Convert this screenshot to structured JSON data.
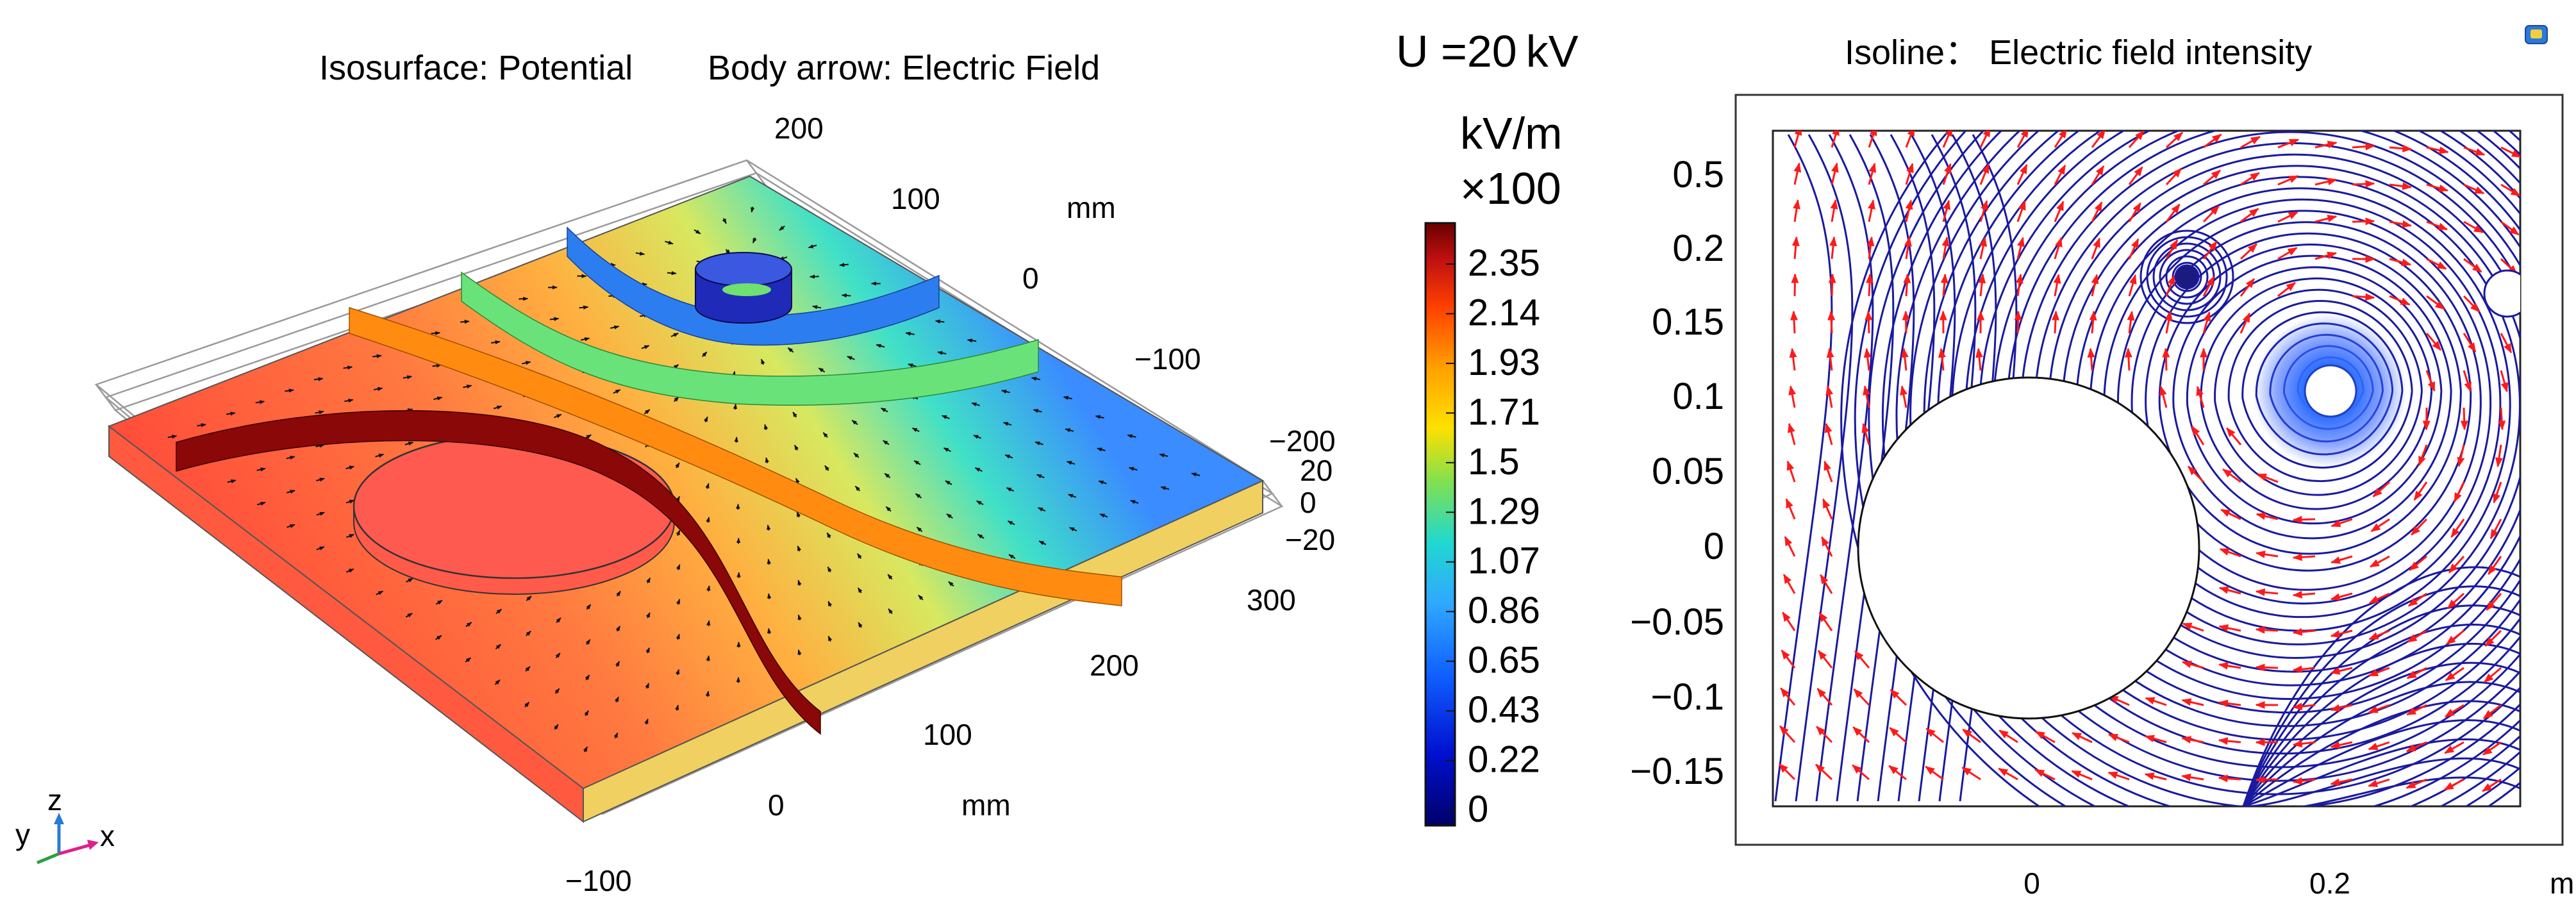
{
  "left_panel": {
    "title_iso": "Isosurface: Potential",
    "title_arrow": "Body arrow: Electric Field",
    "y_ticks": [
      "200",
      "100",
      "0",
      "−100"
    ],
    "z_ticks": [
      "−200",
      "20",
      "0",
      "−20"
    ],
    "x_ticks": [
      "300",
      "200",
      "100",
      "0",
      "−100"
    ],
    "unit_a": "mm",
    "unit_b": "mm",
    "triad": {
      "z": "z",
      "y": "y",
      "x": "x"
    }
  },
  "legend": {
    "voltage": "U =20 kV",
    "unit": "kV/m",
    "scale": "×100",
    "ticks": [
      "2.35",
      "2.14",
      "1.93",
      "1.71",
      "1.5",
      "1.29",
      "1.07",
      "0.86",
      "0.65",
      "0.43",
      "0.22",
      "0"
    ],
    "colors": [
      "#7a0000",
      "#c01010",
      "#ff3a00",
      "#ff9a00",
      "#ffe000",
      "#8fe040",
      "#20d0c0",
      "#30a8ff",
      "#1060ff",
      "#0010c0",
      "#00006a"
    ]
  },
  "right_panel": {
    "title": "Isoline： Electric field intensity",
    "y_ticks": [
      "0.5",
      "0.2",
      "0.15",
      "0.1",
      "0.05",
      "0",
      "−0.05",
      "−0.1",
      "−0.15"
    ],
    "x_ticks": [
      "0",
      "0.2"
    ],
    "unit": "m",
    "line_color": "#1a1aa0",
    "arrow_color": "#ff1a1a"
  }
}
